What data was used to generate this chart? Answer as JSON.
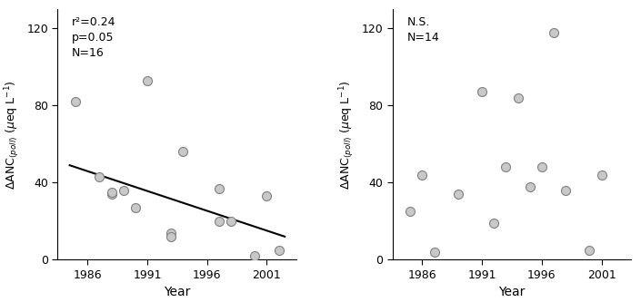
{
  "left": {
    "x": [
      1985,
      1987,
      1988,
      1988,
      1989,
      1990,
      1991,
      1993,
      1993,
      1994,
      1997,
      1997,
      1998,
      2000,
      2001,
      2002
    ],
    "y": [
      82,
      43,
      34,
      35,
      36,
      27,
      93,
      14,
      12,
      56,
      37,
      20,
      20,
      2,
      33,
      5
    ],
    "annotation": "r²=0.24\np=0.05\nN=16",
    "trend_x": [
      1984.5,
      2002.5
    ],
    "trend_y": [
      49,
      12
    ],
    "xlabel": "Year",
    "ylim": [
      0,
      130
    ],
    "yticks": [
      0,
      40,
      80,
      120
    ],
    "xticks": [
      1986,
      1991,
      1996,
      2001
    ],
    "xlim": [
      1983.5,
      2003.5
    ]
  },
  "right": {
    "x": [
      1985,
      1986,
      1987,
      1989,
      1991,
      1992,
      1993,
      1994,
      1995,
      1996,
      1997,
      1998,
      2000,
      2001
    ],
    "y": [
      25,
      44,
      4,
      34,
      87,
      19,
      48,
      84,
      38,
      48,
      118,
      36,
      5,
      44
    ],
    "annotation": "N.S.\nN=14",
    "xlabel": "Year",
    "ylim": [
      0,
      130
    ],
    "yticks": [
      0,
      40,
      80,
      120
    ],
    "xticks": [
      1986,
      1991,
      1996,
      2001
    ],
    "xlim": [
      1983.5,
      2003.5
    ]
  },
  "marker_facecolor": "#c8c8c8",
  "marker_edge_color": "#808080",
  "marker_size": 52,
  "marker_linewidth": 0.8,
  "line_color": "#000000",
  "line_width": 1.5,
  "background_color": "#ffffff",
  "annotation_fontsize": 9,
  "tick_fontsize": 9,
  "label_fontsize": 9,
  "xlabel_fontsize": 10,
  "left_label": "ΔANC$_{(poll)}$ (μeq L$^{-1}$)",
  "right_label": "ΔANC$_{(poll)}$ (μeq L$^{-1}$)"
}
